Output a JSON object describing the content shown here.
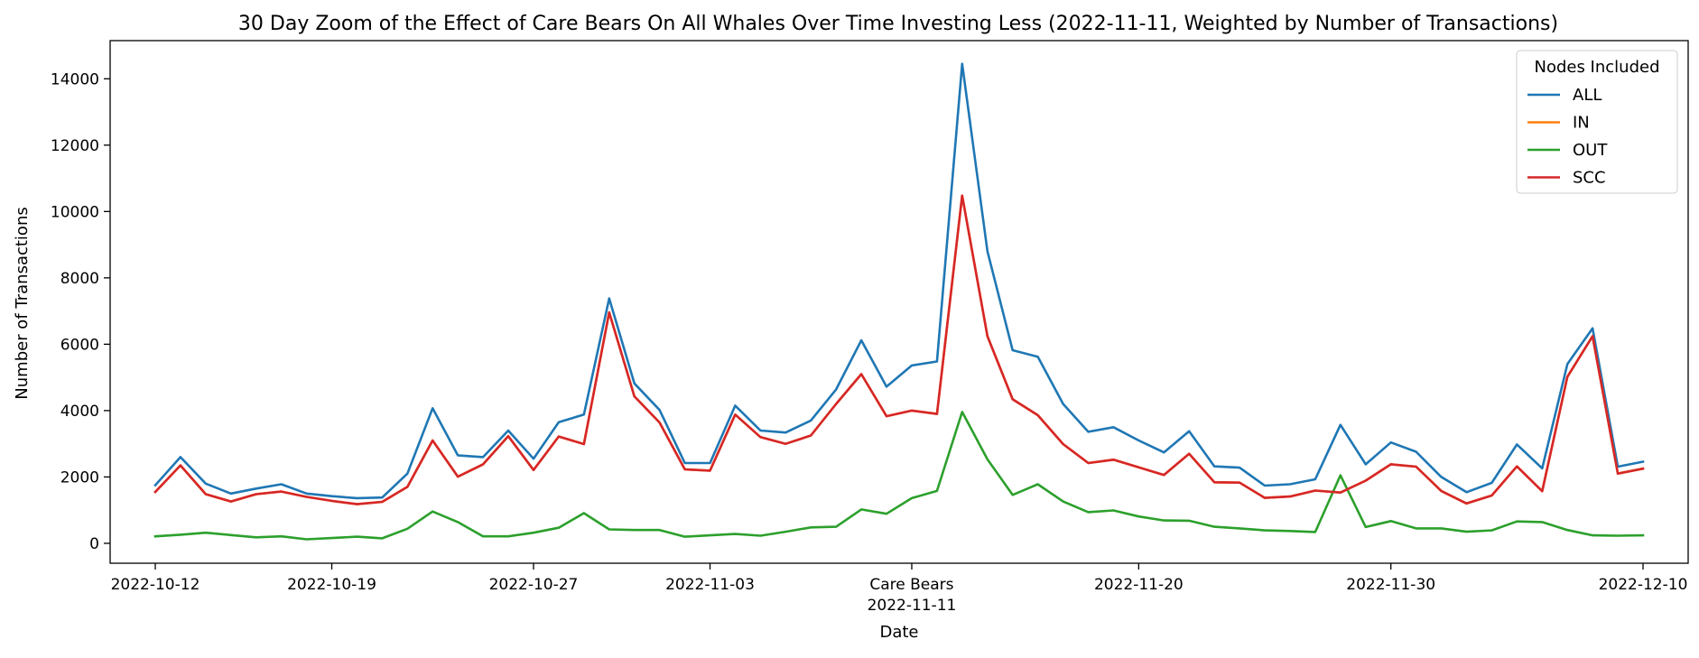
{
  "chart_data": {
    "type": "line",
    "title": "30 Day Zoom of the Effect of Care Bears On All Whales Over Time Investing Less (2022-11-11, Weighted by Number of Transactions)",
    "xlabel": "Date",
    "ylabel": "Number of Transactions",
    "x": [
      "2022-10-12",
      "2022-10-13",
      "2022-10-14",
      "2022-10-15",
      "2022-10-16",
      "2022-10-17",
      "2022-10-18",
      "2022-10-19",
      "2022-10-20",
      "2022-10-21",
      "2022-10-22",
      "2022-10-23",
      "2022-10-24",
      "2022-10-25",
      "2022-10-26",
      "2022-10-27",
      "2022-10-28",
      "2022-10-29",
      "2022-10-30",
      "2022-10-31",
      "2022-11-01",
      "2022-11-02",
      "2022-11-03",
      "2022-11-04",
      "2022-11-05",
      "2022-11-06",
      "2022-11-07",
      "2022-11-08",
      "2022-11-09",
      "2022-11-10",
      "2022-11-11",
      "2022-11-12",
      "2022-11-13",
      "2022-11-14",
      "2022-11-15",
      "2022-11-16",
      "2022-11-17",
      "2022-11-18",
      "2022-11-19",
      "2022-11-20",
      "2022-11-21",
      "2022-11-22",
      "2022-11-23",
      "2022-11-24",
      "2022-11-25",
      "2022-11-26",
      "2022-11-27",
      "2022-11-28",
      "2022-11-29",
      "2022-11-30",
      "2022-12-01",
      "2022-12-02",
      "2022-12-03",
      "2022-12-04",
      "2022-12-05",
      "2022-12-06",
      "2022-12-07",
      "2022-12-08",
      "2022-12-09",
      "2022-12-10"
    ],
    "xticks": [
      {
        "date": "2022-10-12",
        "label": "2022-10-12"
      },
      {
        "date": "2022-10-19",
        "label": "2022-10-19"
      },
      {
        "date": "2022-10-27",
        "label": "2022-10-27"
      },
      {
        "date": "2022-11-03",
        "label": "2022-11-03"
      },
      {
        "date": "2022-11-11",
        "label": "Care Bears",
        "label2": "2022-11-11"
      },
      {
        "date": "2022-11-20",
        "label": "2022-11-20"
      },
      {
        "date": "2022-11-30",
        "label": "2022-11-30"
      },
      {
        "date": "2022-12-10",
        "label": "2022-12-10"
      }
    ],
    "yticks": [
      0,
      2000,
      4000,
      6000,
      8000,
      10000,
      12000,
      14000
    ],
    "ylim": [
      -600,
      15150
    ],
    "grid": false,
    "legend": {
      "title": "Nodes Included",
      "position": "top-right"
    },
    "series": [
      {
        "name": "ALL",
        "color": "#1f77b4",
        "values": [
          1750,
          2600,
          1800,
          1500,
          1650,
          1780,
          1500,
          1420,
          1360,
          1380,
          2100,
          4070,
          2650,
          2600,
          3400,
          2550,
          3650,
          3880,
          7380,
          4820,
          4020,
          2420,
          2420,
          4150,
          3400,
          3340,
          3700,
          4640,
          6120,
          4720,
          5360,
          5480,
          14450,
          8800,
          5820,
          5620,
          4200,
          3360,
          3500,
          3100,
          2740,
          3380,
          2320,
          2280,
          1740,
          1780,
          1930,
          3570,
          2380,
          3040,
          2760,
          2000,
          1540,
          1820,
          2980,
          2260,
          5400,
          6480,
          2310,
          2460
        ]
      },
      {
        "name": "IN",
        "color": "#ff7f0e",
        "values": [
          1550,
          2350,
          1480,
          1260,
          1480,
          1560,
          1400,
          1280,
          1180,
          1250,
          1700,
          3100,
          2010,
          2380,
          3230,
          2210,
          3220,
          2990,
          6960,
          4430,
          3640,
          2230,
          2190,
          3880,
          3200,
          3000,
          3250,
          4200,
          5100,
          3830,
          4000,
          3900,
          10480,
          6240,
          4340,
          3860,
          2990,
          2420,
          2520,
          2290,
          2060,
          2700,
          1840,
          1830,
          1370,
          1410,
          1590,
          1530,
          1890,
          2380,
          2310,
          1580,
          1200,
          1440,
          2320,
          1570,
          5020,
          6240,
          2100,
          2250
        ]
      },
      {
        "name": "OUT",
        "color": "#2ca02c",
        "values": [
          210,
          260,
          320,
          250,
          180,
          210,
          120,
          160,
          200,
          150,
          440,
          960,
          640,
          210,
          210,
          320,
          470,
          910,
          420,
          400,
          400,
          200,
          240,
          280,
          230,
          350,
          480,
          500,
          1020,
          890,
          1360,
          1580,
          3960,
          2530,
          1460,
          1780,
          1260,
          940,
          990,
          810,
          690,
          680,
          500,
          450,
          390,
          370,
          340,
          2050,
          490,
          670,
          450,
          450,
          350,
          390,
          660,
          640,
          400,
          240,
          230,
          240
        ]
      },
      {
        "name": "SCC",
        "color": "#d62728",
        "values": [
          1550,
          2350,
          1480,
          1260,
          1480,
          1560,
          1400,
          1280,
          1180,
          1250,
          1700,
          3100,
          2010,
          2380,
          3230,
          2210,
          3220,
          2990,
          6960,
          4430,
          3640,
          2230,
          2190,
          3880,
          3200,
          3000,
          3250,
          4200,
          5100,
          3830,
          4000,
          3900,
          10480,
          6240,
          4340,
          3860,
          2990,
          2420,
          2520,
          2290,
          2060,
          2700,
          1840,
          1830,
          1370,
          1410,
          1590,
          1530,
          1890,
          2380,
          2310,
          1580,
          1200,
          1440,
          2320,
          1570,
          5020,
          6240,
          2100,
          2250
        ]
      }
    ]
  }
}
